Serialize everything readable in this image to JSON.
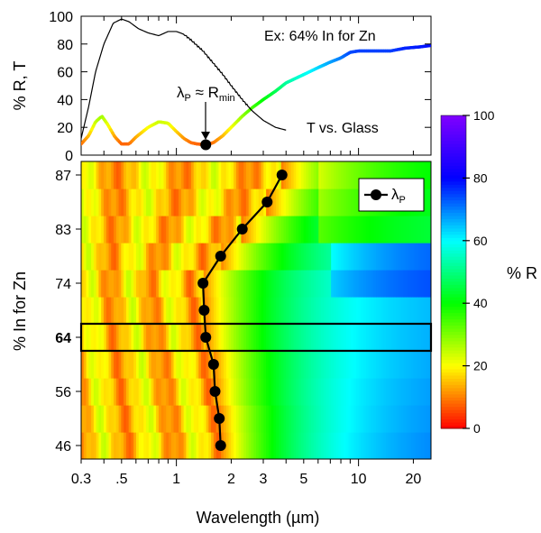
{
  "chart_data": [
    {
      "type": "line",
      "panel": "top",
      "ylabel": "% R, T",
      "ylim": [
        0,
        100
      ],
      "yticks": [
        "0",
        "20",
        "40",
        "60",
        "80",
        "100"
      ],
      "xscale": "log",
      "xlim": [
        0.3,
        25
      ],
      "annotation_example": "Ex: 64% In for Zn",
      "annotation_T": "T vs. Glass",
      "annotation_lambda_main": "λ",
      "annotation_lambda_sub": "P",
      "annotation_approx": " ≈ R",
      "annotation_rmin_sub": "min",
      "marker_point": {
        "x": 1.45,
        "y": 7.5
      },
      "series": [
        {
          "name": "R",
          "color_mapped": true,
          "x": [
            0.3,
            0.33,
            0.36,
            0.39,
            0.42,
            0.46,
            0.5,
            0.55,
            0.6,
            0.7,
            0.8,
            0.9,
            1.0,
            1.1,
            1.2,
            1.3,
            1.45,
            1.6,
            1.8,
            2.0,
            2.3,
            2.6,
            3.0,
            3.5,
            4.0,
            5.0,
            6.0,
            7.0,
            8.0,
            9.0,
            10,
            12,
            15,
            18,
            22,
            25
          ],
          "y": [
            8,
            14,
            24,
            28,
            22,
            13,
            8,
            8,
            13,
            20,
            24,
            23,
            17,
            12,
            9,
            8,
            7.5,
            9,
            14,
            20,
            28,
            34,
            40,
            46,
            52,
            58,
            63,
            67,
            70,
            74,
            75,
            75,
            75,
            77,
            78,
            79
          ]
        },
        {
          "name": "T",
          "color": "#000000",
          "x": [
            0.3,
            0.33,
            0.36,
            0.4,
            0.45,
            0.5,
            0.55,
            0.62,
            0.7,
            0.8,
            0.9,
            1.0,
            1.1,
            1.2,
            1.4,
            1.6,
            1.8,
            2.0,
            2.3,
            2.6,
            3.0,
            3.5,
            4.0
          ],
          "y": [
            12,
            35,
            60,
            80,
            95,
            98,
            96,
            91,
            88,
            86,
            89,
            89,
            87,
            83,
            75,
            66,
            58,
            50,
            40,
            32,
            25,
            20,
            18
          ]
        }
      ]
    },
    {
      "type": "heatmap",
      "panel": "bottom",
      "xlabel": "Wavelength (µm)",
      "ylabel": "% In for Zn",
      "colorbar_label": "% R",
      "colorbar_range": [
        0,
        100
      ],
      "colorbar_ticks": [
        "0",
        "20",
        "40",
        "60",
        "80",
        "100"
      ],
      "xticks": [
        {
          "value": 0.3,
          "label": "0.3"
        },
        {
          "value": 0.5,
          "label": ".5"
        },
        {
          "value": 1,
          "label": "1"
        },
        {
          "value": 2,
          "label": "2"
        },
        {
          "value": 3,
          "label": "3"
        },
        {
          "value": 5,
          "label": "5"
        },
        {
          "value": 10,
          "label": "10"
        },
        {
          "value": 20,
          "label": "20"
        }
      ],
      "yticks": [
        {
          "value": 46,
          "label": "46",
          "bold": false
        },
        {
          "value": 56,
          "label": "56",
          "bold": false
        },
        {
          "value": 64,
          "label": "64",
          "bold": true
        },
        {
          "value": 74,
          "label": "74",
          "bold": false
        },
        {
          "value": 83,
          "label": "83",
          "bold": false
        },
        {
          "value": 87,
          "label": "87",
          "bold": false
        }
      ],
      "rows": [
        {
          "label": "46",
          "lambda_p": 1.75
        },
        {
          "label": "50",
          "lambda_p": 1.72
        },
        {
          "label": "56",
          "lambda_p": 1.63
        },
        {
          "label": "60",
          "lambda_p": 1.6
        },
        {
          "label": "64",
          "lambda_p": 1.45
        },
        {
          "label": "68",
          "lambda_p": 1.42
        },
        {
          "label": "74",
          "lambda_p": 1.4
        },
        {
          "label": "78",
          "lambda_p": 1.75
        },
        {
          "label": "83",
          "lambda_p": 2.3
        },
        {
          "label": "85",
          "lambda_p": 3.15
        },
        {
          "label": "87",
          "lambda_p": 3.8
        }
      ],
      "highlight_row": "64",
      "legend_main": "λ",
      "legend_sub": "P",
      "legend_position": "top-right"
    }
  ]
}
